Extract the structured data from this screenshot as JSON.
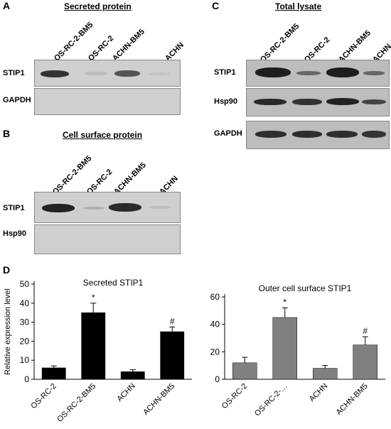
{
  "panels": {
    "A": {
      "letter": "A",
      "title": "Secreted protein",
      "lanes": [
        "OS-RC-2-BM5",
        "OS-RC-2",
        "ACHN-BM5",
        "ACHN"
      ],
      "rows": [
        "STIP1",
        "GAPDH"
      ]
    },
    "B": {
      "letter": "B",
      "title": "Cell surface protein",
      "lanes": [
        "OS-RC-2-BM5",
        "OS-RC-2",
        "ACHN-BM5",
        "ACHN"
      ],
      "rows": [
        "STIP1",
        "Hsp90"
      ]
    },
    "C": {
      "letter": "C",
      "title": "Total lysate",
      "lanes": [
        "OS-RC-2-BM5",
        "OS-RC-2",
        "ACHN-BM5",
        "ACHN"
      ],
      "rows": [
        "STIP1",
        "Hsp90",
        "GAPDH"
      ]
    },
    "D": {
      "letter": "D"
    }
  },
  "chart_data": [
    {
      "type": "bar",
      "title": "Secreted STIP1",
      "ylabel": "Relative expression level",
      "xlabel": "",
      "categories": [
        "OS-RC-2",
        "OS-RC-2-BM5",
        "ACHN",
        "ACHN-BM5"
      ],
      "values": [
        6,
        35,
        4,
        25
      ],
      "errors": [
        1,
        5,
        1,
        2.5
      ],
      "annotations": [
        "",
        "*",
        "",
        "#"
      ],
      "ylim": [
        0,
        50
      ],
      "yticks": [
        0,
        10,
        20,
        30,
        40,
        50
      ],
      "bar_color": "#000000",
      "grid": false
    },
    {
      "type": "bar",
      "title": "Outer cell surface STIP1",
      "ylabel": "",
      "xlabel": "",
      "categories": [
        "OS-RC-2",
        "OS-RC-2-…",
        "ACHN",
        "ACHN-BM5"
      ],
      "values": [
        12,
        45,
        8,
        25
      ],
      "errors": [
        4,
        7,
        2,
        6
      ],
      "annotations": [
        "",
        "*",
        "",
        "#"
      ],
      "ylim": [
        0,
        60
      ],
      "yticks": [
        0,
        20,
        40,
        60
      ],
      "bar_color": "#808080",
      "grid": false
    }
  ]
}
